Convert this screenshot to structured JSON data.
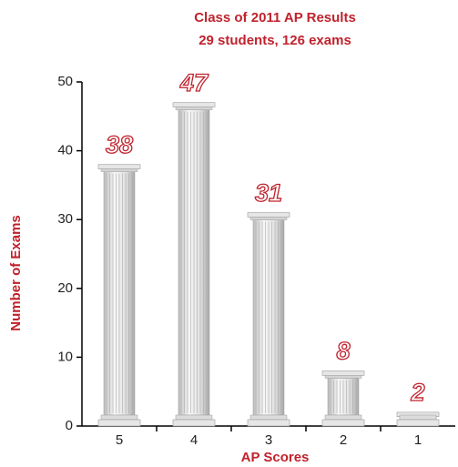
{
  "chart_data": {
    "type": "bar",
    "title": "Class of 2011 AP Results",
    "subtitle": "29 students, 126 exams",
    "x_label": "AP Scores",
    "y_label": "Number of Exams",
    "categories": [
      "5",
      "4",
      "3",
      "2",
      "1"
    ],
    "values": [
      38,
      47,
      31,
      8,
      2
    ],
    "color": "#e6e6e6",
    "ylim": [
      0,
      50
    ],
    "yticks": [
      0,
      10,
      20,
      30,
      40,
      50
    ],
    "grid": false
  }
}
